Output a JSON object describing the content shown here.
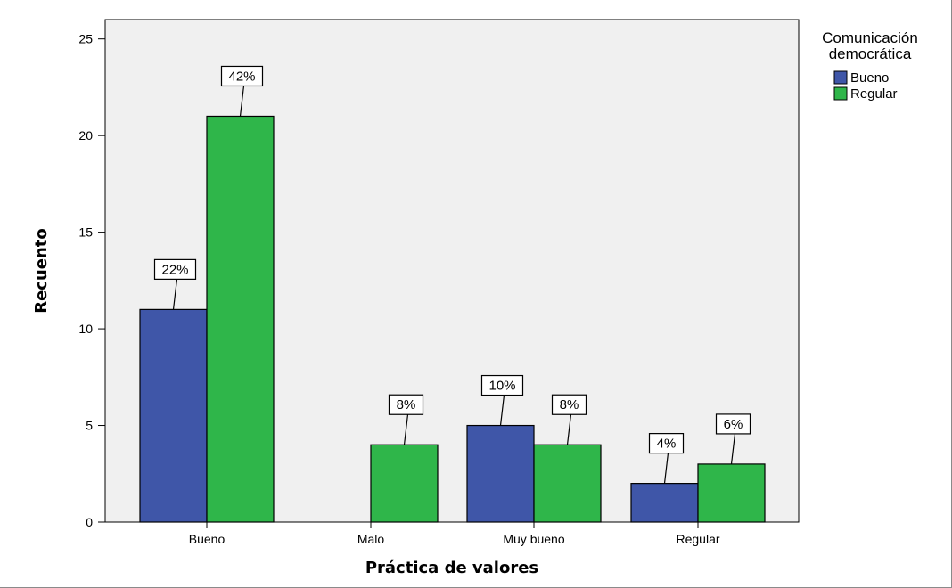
{
  "chart_data": {
    "type": "bar",
    "title": "",
    "xlabel": "Práctica de valores",
    "ylabel": "Recuento",
    "categories": [
      "Bueno",
      "Malo",
      "Muy bueno",
      "Regular"
    ],
    "series": [
      {
        "name": "Bueno",
        "color": "#3f56a8",
        "values": [
          11,
          0,
          5,
          2
        ],
        "labels": [
          "22%",
          "",
          "10%",
          "4%"
        ]
      },
      {
        "name": "Regular",
        "color": "#2fb64a",
        "values": [
          21,
          4,
          4,
          3
        ],
        "labels": [
          "42%",
          "8%",
          "8%",
          "6%"
        ]
      }
    ],
    "ylim": [
      0,
      26
    ],
    "yticks": [
      0,
      5,
      10,
      15,
      20,
      25
    ],
    "grid": false,
    "plot_background": "#f0f0f0",
    "legend": {
      "title_lines": [
        "Comunicación",
        "democrática"
      ],
      "placement": "right"
    }
  }
}
